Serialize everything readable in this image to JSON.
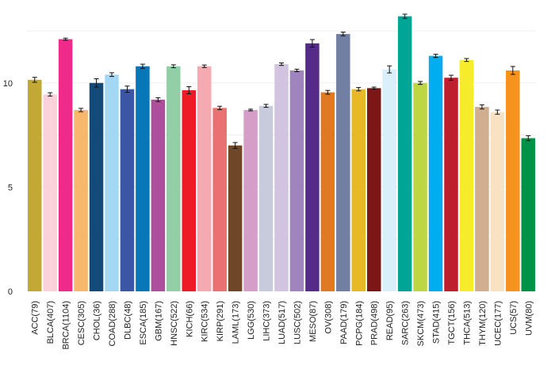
{
  "chart_data": {
    "type": "bar",
    "title": "",
    "xlabel": "",
    "ylabel": "",
    "ylim": [
      0,
      13.6
    ],
    "yticks": [
      0,
      5,
      10
    ],
    "grid": "horizontal",
    "legend": "none",
    "categories": [
      "ACC(79)",
      "BLCA(407)",
      "BRCA(1104)",
      "CESC(305)",
      "CHOL(36)",
      "COAD(288)",
      "DLBC(48)",
      "ESCA(185)",
      "GBM(167)",
      "HNSC(522)",
      "KICH(66)",
      "KIRC(534)",
      "KIRP(291)",
      "LAML(173)",
      "LGG(530)",
      "LIHC(373)",
      "LUAD(517)",
      "LUSC(502)",
      "MESO(87)",
      "OV(308)",
      "PAAD(179)",
      "PCPG(184)",
      "PRAD(498)",
      "READ(95)",
      "SARC(263)",
      "SKCM(473)",
      "STAD(415)",
      "TGCT(156)",
      "THCA(513)",
      "THYM(120)",
      "UCEC(177)",
      "UCS(57)",
      "UVM(80)"
    ],
    "values": [
      10.15,
      9.45,
      12.1,
      8.7,
      10.0,
      10.4,
      9.7,
      10.8,
      9.2,
      10.8,
      9.65,
      10.8,
      8.8,
      7.0,
      8.7,
      8.9,
      10.9,
      10.6,
      11.9,
      9.55,
      12.35,
      9.7,
      9.75,
      10.65,
      13.2,
      10.0,
      11.3,
      10.25,
      11.1,
      8.85,
      8.6,
      10.6,
      7.35
    ],
    "errors": [
      0.12,
      0.08,
      0.05,
      0.08,
      0.2,
      0.09,
      0.15,
      0.1,
      0.09,
      0.07,
      0.17,
      0.06,
      0.08,
      0.14,
      0.04,
      0.07,
      0.06,
      0.06,
      0.18,
      0.09,
      0.09,
      0.08,
      0.05,
      0.17,
      0.1,
      0.07,
      0.08,
      0.12,
      0.07,
      0.1,
      0.1,
      0.19,
      0.12
    ],
    "colors": [
      "#c2a935",
      "#fbd1da",
      "#ee2a8b",
      "#f7b76c",
      "#144a7a",
      "#a3d8f5",
      "#3b56a4",
      "#0877b8",
      "#ae4f9b",
      "#93cfa6",
      "#eb1c23",
      "#f5aab1",
      "#ea7071",
      "#6d4728",
      "#d49ec9",
      "#c8cbdb",
      "#d2c3e0",
      "#9f84bd",
      "#542c87",
      "#de7a24",
      "#7180a2",
      "#e7b924",
      "#7c1617",
      "#d9f0fb",
      "#00a595",
      "#bfd644",
      "#00aeef",
      "#bf1e2d",
      "#f7ec2c",
      "#d1ae8f",
      "#f8e2c2",
      "#f6921e",
      "#009347"
    ]
  }
}
